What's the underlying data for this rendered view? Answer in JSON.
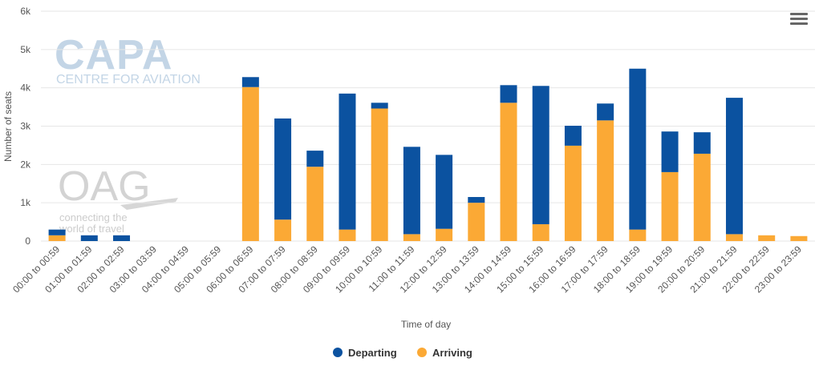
{
  "chart_data": {
    "type": "bar",
    "stacked": true,
    "categories": [
      "00:00 to 00:59",
      "01:00 to 01:59",
      "02:00 to 02:59",
      "03:00 to 03:59",
      "04:00 to 04:59",
      "05:00 to 05:59",
      "06:00 to 06:59",
      "07:00 to 07:59",
      "08:00 to 08:59",
      "09:00 to 09:59",
      "10:00 to 10:59",
      "11:00 to 11:59",
      "12:00 to 12:59",
      "13:00 to 13:59",
      "14:00 to 14:59",
      "15:00 to 15:59",
      "16:00 to 16:59",
      "17:00 to 17:59",
      "18:00 to 18:59",
      "19:00 to 19:59",
      "20:00 to 20:59",
      "21:00 to 21:59",
      "22:00 to 22:59",
      "23:00 to 23:59"
    ],
    "series": [
      {
        "name": "Departing",
        "color": "#0b52a0",
        "values": [
          150,
          150,
          150,
          0,
          0,
          0,
          260,
          2640,
          420,
          3550,
          150,
          2280,
          1930,
          150,
          460,
          3610,
          520,
          440,
          4200,
          1060,
          560,
          3560,
          0,
          0
        ]
      },
      {
        "name": "Arriving",
        "color": "#fba935",
        "values": [
          150,
          0,
          0,
          0,
          0,
          0,
          4020,
          560,
          1940,
          300,
          3460,
          180,
          320,
          1000,
          3610,
          440,
          2490,
          3150,
          300,
          1800,
          2280,
          180,
          150,
          130
        ]
      }
    ],
    "xlabel": "Time of day",
    "ylabel": "Number of seats",
    "ylim": [
      0,
      6000
    ],
    "yticks": [
      "0",
      "1k",
      "2k",
      "3k",
      "4k",
      "5k",
      "6k"
    ],
    "grid": true,
    "legend_position": "bottom-center"
  },
  "watermarks": {
    "capa_title": "CAPA",
    "capa_subtitle": "CENTRE FOR AVIATION",
    "oag_title": "OAG",
    "oag_tagline_1": "connecting the",
    "oag_tagline_2": "world of travel"
  },
  "menu": {
    "icon": "hamburger-menu-icon"
  }
}
